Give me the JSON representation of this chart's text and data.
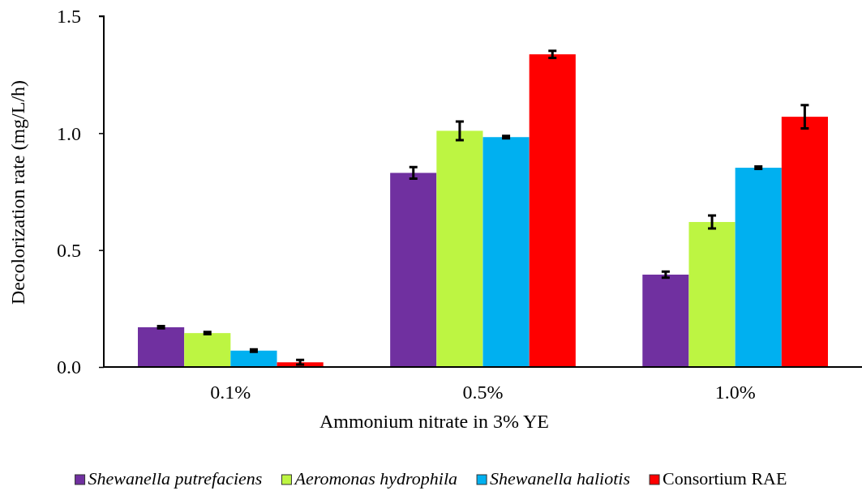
{
  "chart_data": {
    "type": "bar",
    "xlabel": "Ammonium nitrate in 3% YE",
    "ylabel": "Decolorization rate (mg/L/h)",
    "categories": [
      "0.1%",
      "0.5%",
      "1.0%"
    ],
    "series": [
      {
        "name": "Shewanella putrefaciens",
        "color": "#7030a0",
        "values": [
          0.17,
          0.83,
          0.395
        ],
        "errors": [
          0.005,
          0.025,
          0.013
        ]
      },
      {
        "name": "Aeromonas hydrophila",
        "color": "#bdf542",
        "values": [
          0.145,
          1.01,
          0.62
        ],
        "errors": [
          0.005,
          0.04,
          0.028
        ]
      },
      {
        "name": "Shewanella haliotis",
        "color": "#00b0f0",
        "values": [
          0.07,
          0.983,
          0.852
        ],
        "errors": [
          0.005,
          0.005,
          0.005
        ]
      },
      {
        "name": "Consortium RAE",
        "color": "#ff0000",
        "values": [
          0.02,
          1.337,
          1.07
        ],
        "errors": [
          0.01,
          0.015,
          0.05
        ]
      }
    ],
    "ylim": [
      0,
      1.5
    ],
    "yticks": [
      {
        "value": 0,
        "label": "0.0"
      },
      0.5,
      {
        "value": 1,
        "label": "1.0"
      },
      1.5
    ],
    "grid": false,
    "legend": "bottom"
  }
}
